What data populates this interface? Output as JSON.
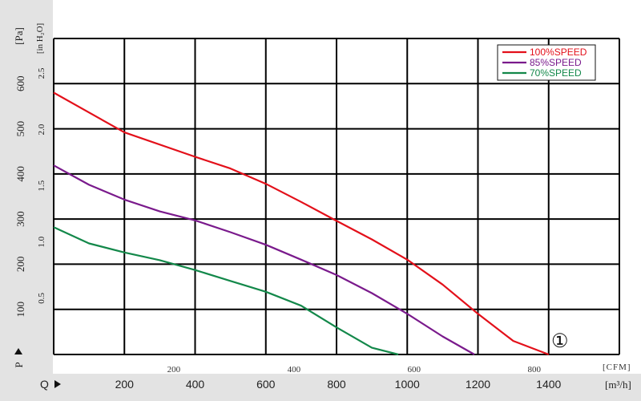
{
  "chart_data": {
    "type": "line",
    "title": "",
    "pa_axis": {
      "unit_label": "[Pa]",
      "symbol": "P",
      "ticks": [
        100,
        200,
        300,
        400,
        500,
        600
      ],
      "range": [
        0,
        700
      ]
    },
    "inh2o_axis": {
      "unit_label": "[in H₂O]",
      "ticks": [
        "0.5",
        "1.0",
        "1.5",
        "2.0",
        "2.5"
      ],
      "tick_values": [
        0.5,
        1.0,
        1.5,
        2.0,
        2.5
      ]
    },
    "m3h_axis": {
      "unit_label": "[m³/h]",
      "symbol": "Q",
      "ticks": [
        200,
        400,
        600,
        800,
        1000,
        1200,
        1400
      ],
      "range": [
        0,
        1600
      ]
    },
    "cfm_axis": {
      "unit_label": "[CFM]",
      "ticks": [
        200,
        400,
        600,
        800
      ]
    },
    "legend_position": "top-right",
    "grid": true,
    "marker_label": "①",
    "series": [
      {
        "name": "100%SPEED",
        "color": "#e3101a",
        "points": [
          [
            0,
            580
          ],
          [
            200,
            492
          ],
          [
            400,
            438
          ],
          [
            500,
            412
          ],
          [
            600,
            378
          ],
          [
            700,
            338
          ],
          [
            800,
            296
          ],
          [
            900,
            255
          ],
          [
            1000,
            210
          ],
          [
            1100,
            155
          ],
          [
            1200,
            90
          ],
          [
            1300,
            30
          ],
          [
            1400,
            0
          ]
        ]
      },
      {
        "name": "85%SPEED",
        "color": "#7a1a8c",
        "points": [
          [
            0,
            419
          ],
          [
            100,
            376
          ],
          [
            200,
            343
          ],
          [
            300,
            317
          ],
          [
            400,
            297
          ],
          [
            500,
            271
          ],
          [
            600,
            243
          ],
          [
            700,
            210
          ],
          [
            800,
            176
          ],
          [
            900,
            136
          ],
          [
            1000,
            90
          ],
          [
            1100,
            40
          ],
          [
            1190,
            0
          ]
        ]
      },
      {
        "name": "70%SPEED",
        "color": "#13884a",
        "points": [
          [
            0,
            282
          ],
          [
            100,
            246
          ],
          [
            200,
            226
          ],
          [
            300,
            209
          ],
          [
            400,
            187
          ],
          [
            500,
            163
          ],
          [
            600,
            139
          ],
          [
            700,
            108
          ],
          [
            800,
            60
          ],
          [
            900,
            15
          ],
          [
            975,
            0
          ]
        ]
      }
    ]
  }
}
